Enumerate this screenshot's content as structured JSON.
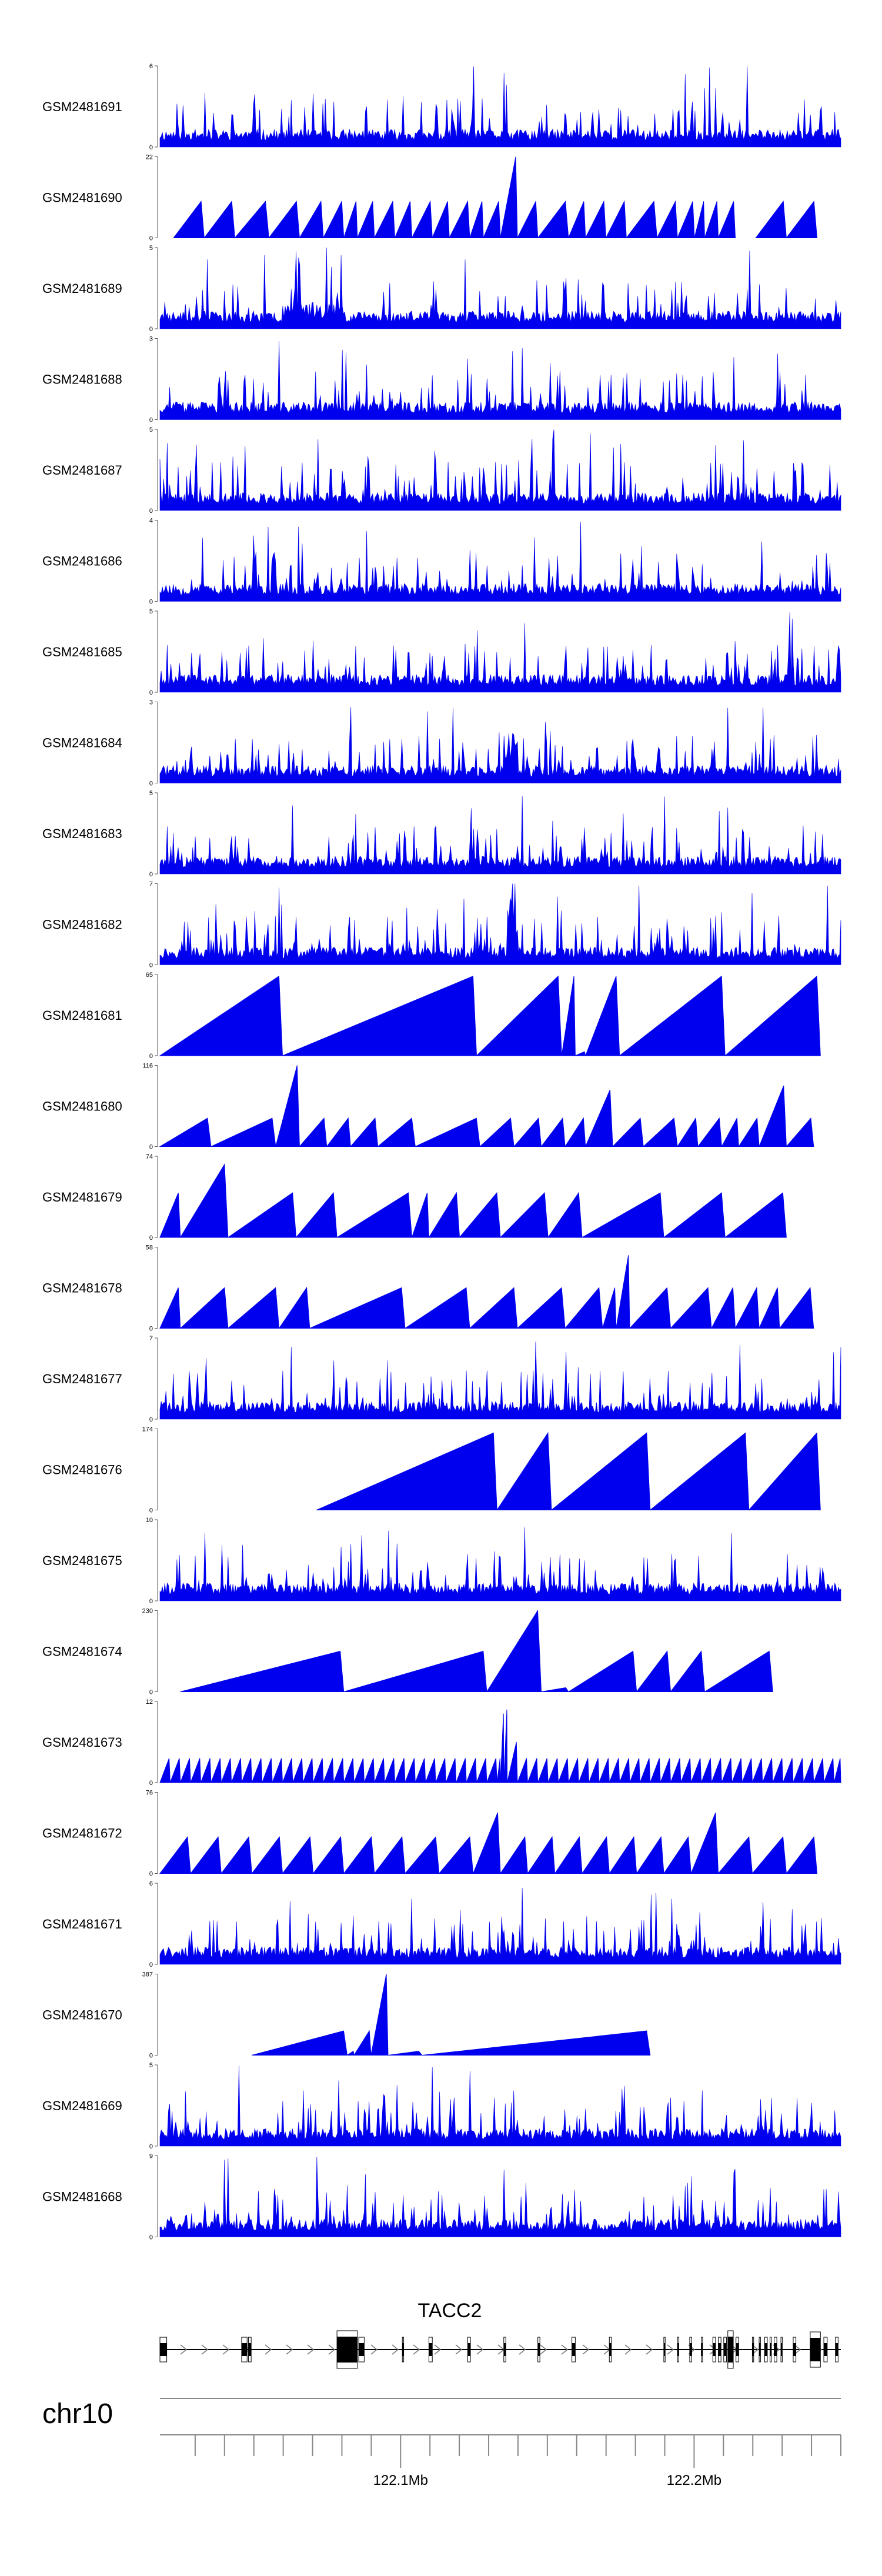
{
  "chart_data": {
    "type": "area",
    "chromosome": "chr10",
    "gene_label": "TACC2",
    "axis_ticks": [
      {
        "label": "122.1Mb",
        "value": 122.1
      },
      {
        "label": "122.2Mb",
        "value": 122.2
      }
    ],
    "x_range_mb": [
      122.018,
      122.25
    ],
    "series_color": "#0000ee",
    "tracks": [
      {
        "name": "GSM2481691",
        "ylim": [
          0,
          6
        ],
        "style": "dense",
        "seed": 11,
        "hot": []
      },
      {
        "name": "GSM2481690",
        "ylim": [
          0,
          22
        ],
        "style": "tri",
        "peaks": [
          [
            0.02,
            0.065,
            0.45
          ],
          [
            0.065,
            0.11,
            0.45
          ],
          [
            0.11,
            0.16,
            0.45
          ],
          [
            0.16,
            0.205,
            0.45
          ],
          [
            0.205,
            0.24,
            0.45
          ],
          [
            0.24,
            0.27,
            0.45
          ],
          [
            0.27,
            0.29,
            0.45
          ],
          [
            0.29,
            0.315,
            0.45
          ],
          [
            0.315,
            0.345,
            0.45
          ],
          [
            0.345,
            0.37,
            0.45
          ],
          [
            0.37,
            0.4,
            0.45
          ],
          [
            0.4,
            0.425,
            0.45
          ],
          [
            0.425,
            0.455,
            0.45
          ],
          [
            0.455,
            0.475,
            0.45
          ],
          [
            0.475,
            0.5,
            0.45
          ],
          [
            0.5,
            0.525,
            1.0
          ],
          [
            0.525,
            0.555,
            0.45
          ],
          [
            0.555,
            0.6,
            0.45
          ],
          [
            0.6,
            0.625,
            0.45
          ],
          [
            0.625,
            0.655,
            0.45
          ],
          [
            0.655,
            0.685,
            0.45
          ],
          [
            0.685,
            0.73,
            0.45
          ],
          [
            0.73,
            0.76,
            0.45
          ],
          [
            0.76,
            0.785,
            0.45
          ],
          [
            0.785,
            0.8,
            0.45
          ],
          [
            0.8,
            0.82,
            0.45
          ],
          [
            0.82,
            0.845,
            0.45
          ],
          [
            0.875,
            0.92,
            0.45
          ],
          [
            0.92,
            0.965,
            0.45
          ]
        ]
      },
      {
        "name": "GSM2481689",
        "ylim": [
          0,
          5
        ],
        "style": "dense",
        "seed": 23,
        "hot": [
          [
            0.18,
            0.27,
            1.6
          ]
        ]
      },
      {
        "name": "GSM2481688",
        "ylim": [
          0,
          3
        ],
        "style": "dense",
        "seed": 37,
        "hot": []
      },
      {
        "name": "GSM2481687",
        "ylim": [
          0,
          5
        ],
        "style": "dense",
        "seed": 41,
        "hot": []
      },
      {
        "name": "GSM2481686",
        "ylim": [
          0,
          4
        ],
        "style": "dense",
        "seed": 53,
        "hot": []
      },
      {
        "name": "GSM2481685",
        "ylim": [
          0,
          5
        ],
        "style": "dense",
        "seed": 61,
        "hot": []
      },
      {
        "name": "GSM2481684",
        "ylim": [
          0,
          3
        ],
        "style": "dense",
        "seed": 71,
        "hot": [
          [
            0.505,
            0.525,
            3.0
          ]
        ]
      },
      {
        "name": "GSM2481683",
        "ylim": [
          0,
          5
        ],
        "style": "dense",
        "seed": 83,
        "hot": []
      },
      {
        "name": "GSM2481682",
        "ylim": [
          0,
          7
        ],
        "style": "dense",
        "seed": 97,
        "hot": [
          [
            0.51,
            0.525,
            4.0
          ]
        ]
      },
      {
        "name": "GSM2481681",
        "ylim": [
          0,
          65
        ],
        "style": "tri",
        "peaks": [
          [
            0.0,
            0.18,
            0.98
          ],
          [
            0.18,
            0.465,
            0.98
          ],
          [
            0.465,
            0.59,
            0.98
          ],
          [
            0.59,
            0.61,
            0.98
          ],
          [
            0.61,
            0.625,
            0.05
          ],
          [
            0.625,
            0.675,
            0.98
          ],
          [
            0.675,
            0.83,
            0.98
          ],
          [
            0.83,
            0.97,
            0.98
          ]
        ]
      },
      {
        "name": "GSM2481680",
        "ylim": [
          0,
          116
        ],
        "style": "tri",
        "peaks": [
          [
            0.0,
            0.075,
            0.35
          ],
          [
            0.075,
            0.17,
            0.35
          ],
          [
            0.17,
            0.205,
            1.0
          ],
          [
            0.205,
            0.245,
            0.35
          ],
          [
            0.245,
            0.28,
            0.35
          ],
          [
            0.28,
            0.32,
            0.35
          ],
          [
            0.32,
            0.375,
            0.35
          ],
          [
            0.375,
            0.47,
            0.35
          ],
          [
            0.47,
            0.52,
            0.35
          ],
          [
            0.52,
            0.56,
            0.35
          ],
          [
            0.56,
            0.595,
            0.35
          ],
          [
            0.595,
            0.625,
            0.35
          ],
          [
            0.625,
            0.665,
            0.7
          ],
          [
            0.665,
            0.71,
            0.35
          ],
          [
            0.71,
            0.76,
            0.35
          ],
          [
            0.76,
            0.79,
            0.35
          ],
          [
            0.79,
            0.825,
            0.35
          ],
          [
            0.825,
            0.85,
            0.35
          ],
          [
            0.85,
            0.88,
            0.35
          ],
          [
            0.88,
            0.92,
            0.75
          ],
          [
            0.92,
            0.96,
            0.35
          ]
        ]
      },
      {
        "name": "GSM2481679",
        "ylim": [
          0,
          74
        ],
        "style": "tri",
        "peaks": [
          [
            0.0,
            0.03,
            0.55
          ],
          [
            0.03,
            0.1,
            0.9
          ],
          [
            0.1,
            0.2,
            0.55
          ],
          [
            0.2,
            0.26,
            0.55
          ],
          [
            0.26,
            0.37,
            0.55
          ],
          [
            0.37,
            0.395,
            0.55
          ],
          [
            0.395,
            0.44,
            0.55
          ],
          [
            0.44,
            0.5,
            0.55
          ],
          [
            0.5,
            0.57,
            0.55
          ],
          [
            0.57,
            0.62,
            0.55
          ],
          [
            0.62,
            0.74,
            0.55
          ],
          [
            0.74,
            0.83,
            0.55
          ],
          [
            0.83,
            0.92,
            0.55
          ]
        ]
      },
      {
        "name": "GSM2481678",
        "ylim": [
          0,
          58
        ],
        "style": "tri",
        "peaks": [
          [
            0.0,
            0.03,
            0.5
          ],
          [
            0.03,
            0.1,
            0.5
          ],
          [
            0.1,
            0.175,
            0.5
          ],
          [
            0.175,
            0.22,
            0.5
          ],
          [
            0.22,
            0.36,
            0.5
          ],
          [
            0.36,
            0.455,
            0.5
          ],
          [
            0.455,
            0.525,
            0.5
          ],
          [
            0.525,
            0.595,
            0.5
          ],
          [
            0.595,
            0.65,
            0.5
          ],
          [
            0.65,
            0.67,
            0.5
          ],
          [
            0.67,
            0.69,
            0.9
          ],
          [
            0.69,
            0.75,
            0.5
          ],
          [
            0.75,
            0.81,
            0.5
          ],
          [
            0.81,
            0.845,
            0.5
          ],
          [
            0.845,
            0.88,
            0.5
          ],
          [
            0.88,
            0.91,
            0.5
          ],
          [
            0.91,
            0.96,
            0.5
          ]
        ]
      },
      {
        "name": "GSM2481677",
        "ylim": [
          0,
          7
        ],
        "style": "dense",
        "seed": 101,
        "hot": []
      },
      {
        "name": "GSM2481676",
        "ylim": [
          0,
          174
        ],
        "style": "tri",
        "peaks": [
          [
            0.23,
            0.495,
            0.95
          ],
          [
            0.495,
            0.575,
            0.95
          ],
          [
            0.575,
            0.72,
            0.95
          ],
          [
            0.72,
            0.865,
            0.95
          ],
          [
            0.865,
            0.97,
            0.95
          ]
        ]
      },
      {
        "name": "GSM2481675",
        "ylim": [
          0,
          10
        ],
        "style": "dense",
        "seed": 113,
        "hot": []
      },
      {
        "name": "GSM2481674",
        "ylim": [
          0,
          230
        ],
        "style": "tri",
        "peaks": [
          [
            0.03,
            0.27,
            0.5
          ],
          [
            0.27,
            0.48,
            0.5
          ],
          [
            0.48,
            0.56,
            1.0
          ],
          [
            0.56,
            0.6,
            0.05
          ],
          [
            0.6,
            0.7,
            0.5
          ],
          [
            0.7,
            0.75,
            0.5
          ],
          [
            0.75,
            0.8,
            0.5
          ],
          [
            0.8,
            0.9,
            0.5
          ]
        ]
      },
      {
        "name": "GSM2481673",
        "ylim": [
          0,
          12
        ],
        "style": "tri",
        "peaks": [
          [
            0.0,
            0.015,
            0.3
          ],
          [
            0.015,
            0.03,
            0.3
          ],
          [
            0.03,
            0.045,
            0.3
          ],
          [
            0.045,
            0.06,
            0.3
          ],
          [
            0.06,
            0.075,
            0.3
          ],
          [
            0.075,
            0.09,
            0.3
          ],
          [
            0.09,
            0.105,
            0.3
          ],
          [
            0.105,
            0.12,
            0.3
          ],
          [
            0.12,
            0.135,
            0.3
          ],
          [
            0.135,
            0.15,
            0.3
          ],
          [
            0.15,
            0.165,
            0.3
          ],
          [
            0.165,
            0.18,
            0.3
          ],
          [
            0.18,
            0.195,
            0.3
          ],
          [
            0.195,
            0.21,
            0.3
          ],
          [
            0.21,
            0.225,
            0.3
          ],
          [
            0.225,
            0.24,
            0.3
          ],
          [
            0.24,
            0.255,
            0.3
          ],
          [
            0.255,
            0.27,
            0.3
          ],
          [
            0.27,
            0.285,
            0.3
          ],
          [
            0.285,
            0.3,
            0.3
          ],
          [
            0.3,
            0.315,
            0.3
          ],
          [
            0.315,
            0.33,
            0.3
          ],
          [
            0.33,
            0.345,
            0.3
          ],
          [
            0.345,
            0.36,
            0.3
          ],
          [
            0.36,
            0.375,
            0.3
          ],
          [
            0.375,
            0.39,
            0.3
          ],
          [
            0.39,
            0.405,
            0.3
          ],
          [
            0.405,
            0.42,
            0.3
          ],
          [
            0.42,
            0.435,
            0.3
          ],
          [
            0.435,
            0.45,
            0.3
          ],
          [
            0.45,
            0.465,
            0.3
          ],
          [
            0.465,
            0.48,
            0.3
          ],
          [
            0.48,
            0.495,
            0.3
          ],
          [
            0.495,
            0.5,
            0.3
          ],
          [
            0.5,
            0.505,
            0.85
          ],
          [
            0.505,
            0.51,
            0.9
          ],
          [
            0.51,
            0.525,
            0.5
          ],
          [
            0.525,
            0.54,
            0.3
          ],
          [
            0.54,
            0.555,
            0.3
          ],
          [
            0.555,
            0.57,
            0.3
          ],
          [
            0.57,
            0.585,
            0.3
          ],
          [
            0.585,
            0.6,
            0.3
          ],
          [
            0.6,
            0.615,
            0.3
          ],
          [
            0.615,
            0.63,
            0.3
          ],
          [
            0.63,
            0.645,
            0.3
          ],
          [
            0.645,
            0.66,
            0.3
          ],
          [
            0.66,
            0.675,
            0.3
          ],
          [
            0.675,
            0.69,
            0.3
          ],
          [
            0.69,
            0.705,
            0.3
          ],
          [
            0.705,
            0.72,
            0.3
          ],
          [
            0.72,
            0.735,
            0.3
          ],
          [
            0.735,
            0.75,
            0.3
          ],
          [
            0.75,
            0.765,
            0.3
          ],
          [
            0.765,
            0.78,
            0.3
          ],
          [
            0.78,
            0.795,
            0.3
          ],
          [
            0.795,
            0.81,
            0.3
          ],
          [
            0.81,
            0.825,
            0.3
          ],
          [
            0.825,
            0.84,
            0.3
          ],
          [
            0.84,
            0.855,
            0.3
          ],
          [
            0.855,
            0.87,
            0.3
          ],
          [
            0.87,
            0.885,
            0.3
          ],
          [
            0.885,
            0.9,
            0.3
          ],
          [
            0.9,
            0.915,
            0.3
          ],
          [
            0.915,
            0.93,
            0.3
          ],
          [
            0.93,
            0.945,
            0.3
          ],
          [
            0.945,
            0.96,
            0.3
          ],
          [
            0.96,
            0.975,
            0.3
          ],
          [
            0.975,
            0.99,
            0.3
          ],
          [
            0.99,
            1.0,
            0.3
          ]
        ]
      },
      {
        "name": "GSM2481672",
        "ylim": [
          0,
          76
        ],
        "style": "tri",
        "peaks": [
          [
            0.0,
            0.045,
            0.45
          ],
          [
            0.045,
            0.09,
            0.45
          ],
          [
            0.09,
            0.135,
            0.45
          ],
          [
            0.135,
            0.18,
            0.45
          ],
          [
            0.18,
            0.225,
            0.45
          ],
          [
            0.225,
            0.27,
            0.45
          ],
          [
            0.27,
            0.315,
            0.45
          ],
          [
            0.315,
            0.36,
            0.45
          ],
          [
            0.36,
            0.41,
            0.45
          ],
          [
            0.41,
            0.46,
            0.45
          ],
          [
            0.46,
            0.5,
            0.75
          ],
          [
            0.5,
            0.54,
            0.45
          ],
          [
            0.54,
            0.58,
            0.45
          ],
          [
            0.58,
            0.62,
            0.45
          ],
          [
            0.62,
            0.66,
            0.45
          ],
          [
            0.66,
            0.7,
            0.45
          ],
          [
            0.7,
            0.74,
            0.45
          ],
          [
            0.74,
            0.78,
            0.45
          ],
          [
            0.78,
            0.82,
            0.75
          ],
          [
            0.82,
            0.87,
            0.45
          ],
          [
            0.87,
            0.92,
            0.45
          ],
          [
            0.92,
            0.965,
            0.45
          ]
        ]
      },
      {
        "name": "GSM2481671",
        "ylim": [
          0,
          6
        ],
        "style": "dense",
        "seed": 131,
        "hot": []
      },
      {
        "name": "GSM2481670",
        "ylim": [
          0,
          387
        ],
        "style": "tri",
        "peaks": [
          [
            0.135,
            0.275,
            0.3
          ],
          [
            0.275,
            0.285,
            0.05
          ],
          [
            0.285,
            0.31,
            0.3
          ],
          [
            0.31,
            0.335,
            1.0
          ],
          [
            0.335,
            0.385,
            0.05
          ],
          [
            0.385,
            0.72,
            0.3
          ]
        ]
      },
      {
        "name": "GSM2481669",
        "ylim": [
          0,
          5
        ],
        "style": "dense",
        "seed": 149,
        "hot": []
      },
      {
        "name": "GSM2481668",
        "ylim": [
          0,
          9
        ],
        "style": "dense",
        "seed": 157,
        "hot": []
      }
    ]
  }
}
